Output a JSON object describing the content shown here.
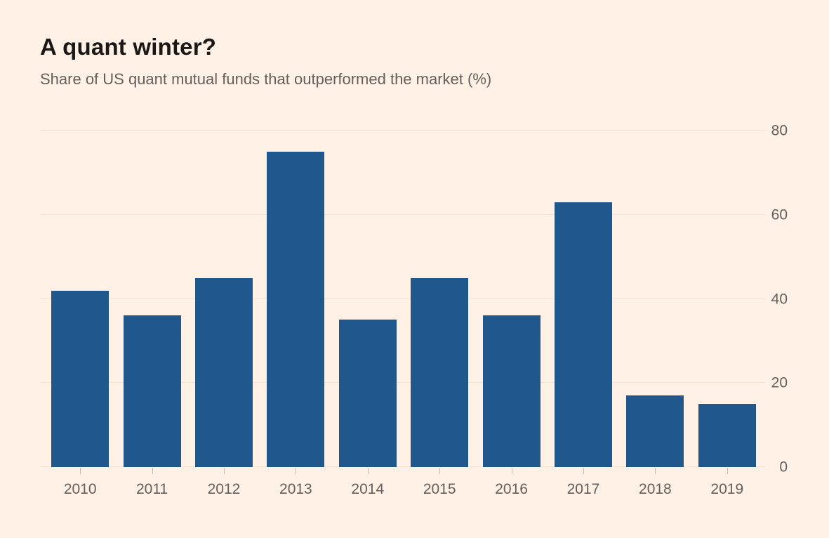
{
  "chart_data": {
    "type": "bar",
    "title": "A quant winter?",
    "subtitle": "Share of US quant mutual funds that outperformed the market (%)",
    "categories": [
      "2010",
      "2011",
      "2012",
      "2013",
      "2014",
      "2015",
      "2016",
      "2017",
      "2018",
      "2019"
    ],
    "values": [
      42,
      36,
      45,
      75,
      35,
      45,
      36,
      63,
      17,
      15
    ],
    "xlabel": "",
    "ylabel": "",
    "ylim": [
      0,
      80
    ],
    "yticks": [
      0,
      20,
      40,
      60,
      80
    ],
    "ytick_side": "right",
    "grid": "horizontal",
    "legend_position": "none"
  },
  "colors": {
    "background": "#FFF1E5",
    "bar": "#20578C",
    "title_text": "#1A1817",
    "subtitle_text": "#66605C",
    "axis_text": "#66605C",
    "gridline": "#F2E0D1",
    "tick_mark": "#C9BDB1"
  }
}
